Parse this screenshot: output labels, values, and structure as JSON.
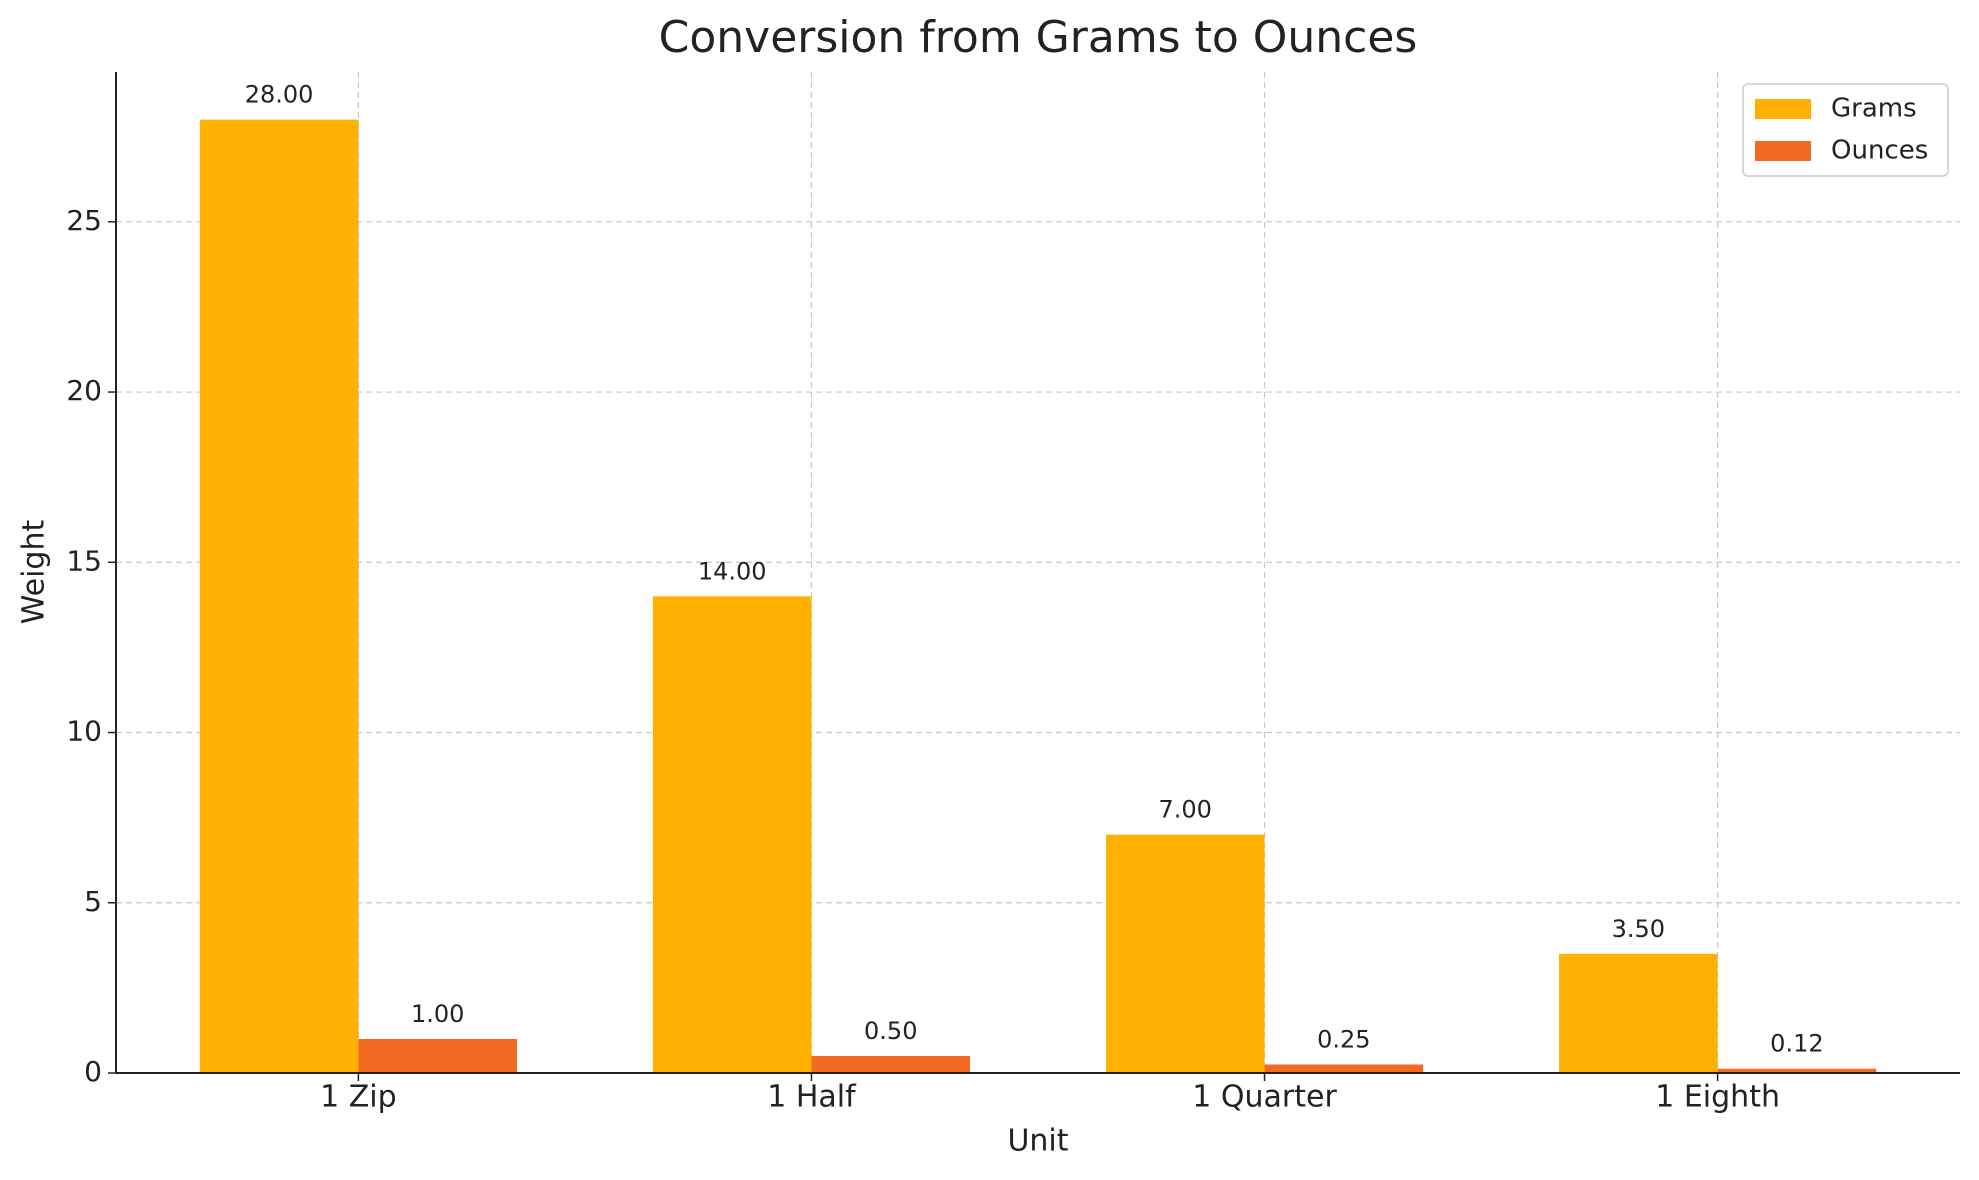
{
  "chart_data": {
    "type": "bar",
    "title": "Conversion from Grams to Ounces",
    "x_label": "Unit",
    "y_label": "Weight",
    "categories": [
      "1 Zip",
      "1 Half",
      "1 Quarter",
      "1 Eighth"
    ],
    "series": [
      {
        "name": "Grams",
        "color": "#ffb000",
        "values": [
          28,
          14,
          7,
          3.5
        ],
        "value_labels": [
          "28.00",
          "14.00",
          "7.00",
          "3.50"
        ]
      },
      {
        "name": "Ounces",
        "color": "#f36b22",
        "values": [
          1,
          0.5,
          0.25,
          0.125
        ],
        "value_labels": [
          "1.00",
          "0.50",
          "0.25",
          "0.12"
        ]
      }
    ],
    "ylim": [
      0,
      29.4
    ],
    "yticks": [
      0,
      5,
      10,
      15,
      20,
      25
    ],
    "grid": true,
    "legend": "upper right"
  }
}
